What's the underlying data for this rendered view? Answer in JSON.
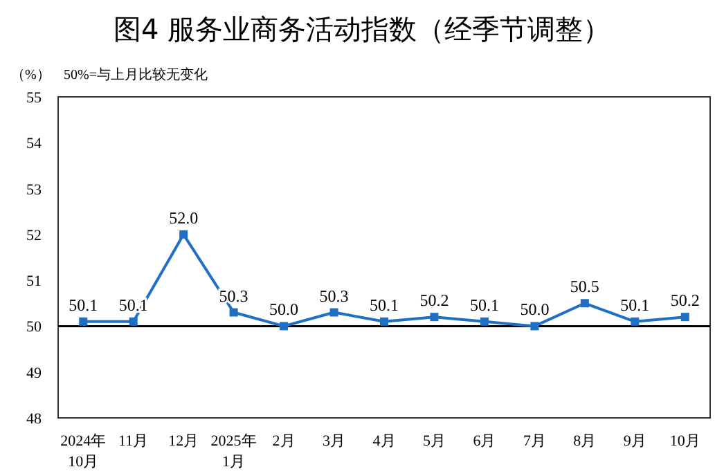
{
  "chart_data": {
    "type": "line",
    "title": "图4  服务业商务活动指数（经季节调整）",
    "ylabel": "（%）",
    "annotations": [
      "50%=与上月比较无变化"
    ],
    "categories": [
      "2024年\n10月",
      "11月",
      "12月",
      "2025年\n1月",
      "2月",
      "3月",
      "4月",
      "5月",
      "6月",
      "7月",
      "8月",
      "9月",
      "10月"
    ],
    "series": [
      {
        "color": "#1f6fc5",
        "values": [
          50.1,
          50.1,
          52.0,
          50.3,
          50.0,
          50.3,
          50.1,
          50.2,
          50.1,
          50.0,
          50.5,
          50.1,
          50.2
        ]
      }
    ],
    "ylim": [
      48,
      55
    ],
    "yticks": [
      48,
      49,
      50,
      51,
      52,
      53,
      54,
      55
    ],
    "ref_lines": [
      {
        "axis": "y",
        "value": 50,
        "color": "#000000"
      }
    ],
    "value_labels": [
      "50.1",
      "50.1",
      "52.0",
      "50.3",
      "50.0",
      "50.3",
      "50.1",
      "50.2",
      "50.1",
      "50.0",
      "50.5",
      "50.1",
      "50.2"
    ],
    "marker": "square",
    "line_style": "solid"
  }
}
